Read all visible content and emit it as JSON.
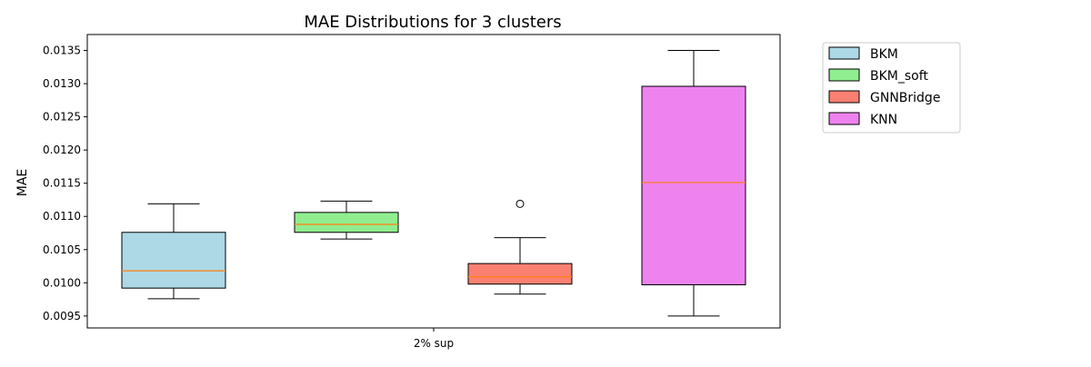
{
  "chart_data": {
    "type": "box",
    "title": "MAE Distributions for 3 clusters",
    "xlabel": "",
    "ylabel": "MAE",
    "categories": [
      "2% sup"
    ],
    "ylim": [
      0.00932,
      0.01374
    ],
    "yticks": [
      0.0095,
      0.01,
      0.0105,
      0.011,
      0.0115,
      0.012,
      0.0125,
      0.013,
      0.0135
    ],
    "ytick_labels": [
      "0.0095",
      "0.0100",
      "0.0105",
      "0.0110",
      "0.0115",
      "0.0120",
      "0.0125",
      "0.0130",
      "0.0135"
    ],
    "grid": false,
    "legend_position": "outside-upper-right",
    "median_color": "#ff7f0e",
    "series": [
      {
        "name": "BKM",
        "color": "#add8e6",
        "whisker_low": 0.00976,
        "q1": 0.00992,
        "median": 0.01018,
        "q3": 0.01076,
        "whisker_high": 0.01119,
        "outliers": []
      },
      {
        "name": "BKM_soft",
        "color": "#90ee90",
        "whisker_low": 0.01066,
        "q1": 0.01076,
        "median": 0.01088,
        "q3": 0.01106,
        "whisker_high": 0.01123,
        "outliers": []
      },
      {
        "name": "GNNBridge",
        "color": "#fa8072",
        "whisker_low": 0.00983,
        "q1": 0.00998,
        "median": 0.01009,
        "q3": 0.01029,
        "whisker_high": 0.01068,
        "outliers": [
          0.01119
        ]
      },
      {
        "name": "KNN",
        "color": "#ee82ee",
        "whisker_low": 0.0095,
        "q1": 0.00997,
        "median": 0.01151,
        "q3": 0.01296,
        "whisker_high": 0.0135,
        "outliers": []
      }
    ]
  }
}
